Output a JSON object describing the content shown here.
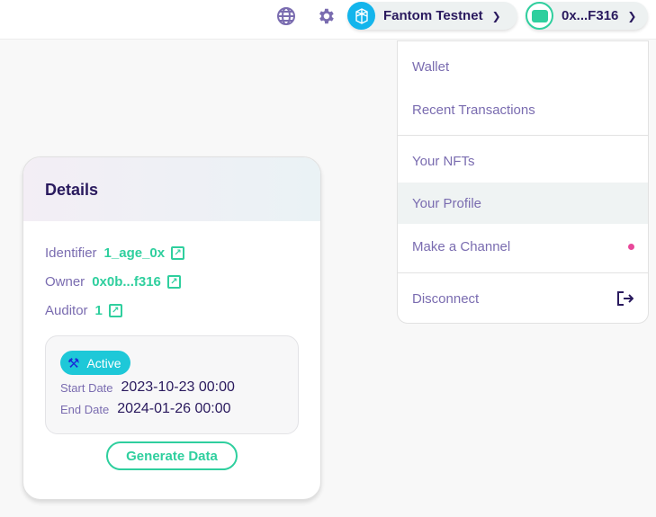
{
  "topbar": {
    "network": "Fantom Testnet",
    "account": "0x...F316"
  },
  "menu": {
    "items": [
      {
        "label": "Wallet"
      },
      {
        "label": "Recent Transactions"
      },
      {
        "label": "Your NFTs"
      },
      {
        "label": "Your Profile"
      },
      {
        "label": "Make a Channel"
      },
      {
        "label": "Disconnect"
      }
    ],
    "highlighted": "Your Profile"
  },
  "details": {
    "title": "Details",
    "identifier_label": "Identifier",
    "identifier": "1_age_0x",
    "owner_label": "Owner",
    "owner": "0x0b...f316",
    "auditor_label": "Auditor",
    "auditor": "1",
    "status": "Active",
    "start_label": "Start Date",
    "start": "2023-10-23 00:00",
    "end_label": "End Date",
    "end": "2024-01-26 00:00",
    "generate": "Generate Data"
  },
  "colors": {
    "accent": "#2fcf9e",
    "primary_text": "#2a1a5e",
    "muted": "#7a6cb0",
    "badge": "#1ec8d8",
    "dot": "#e8489a"
  }
}
